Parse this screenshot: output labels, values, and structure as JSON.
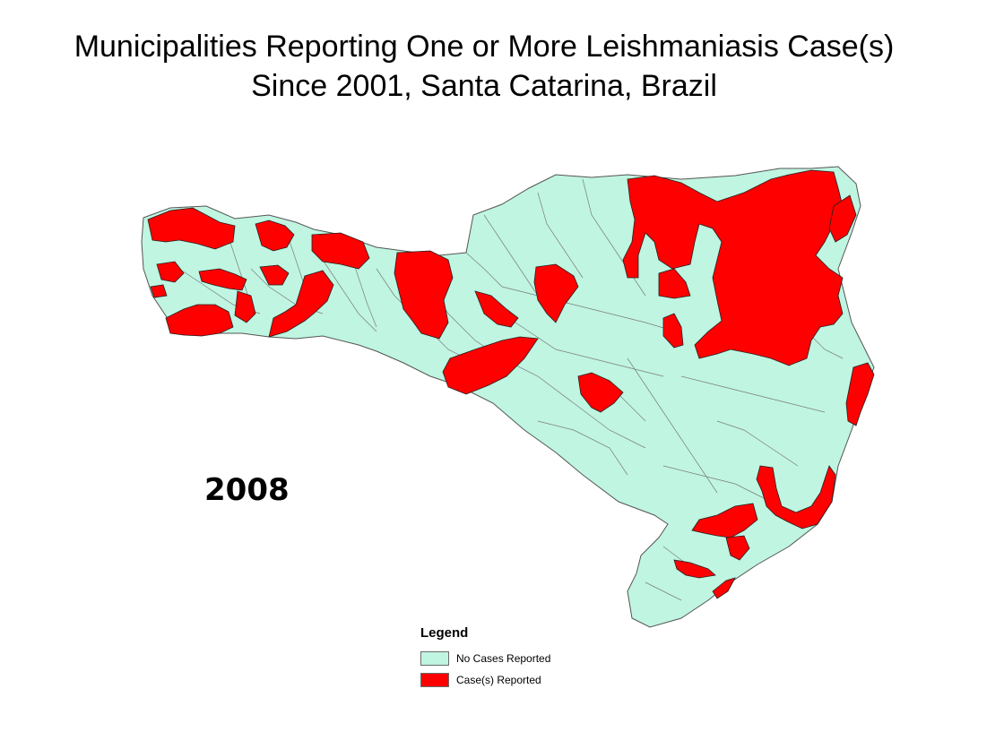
{
  "title": {
    "line1": "Municipalities Reporting One or More Leishmaniasis Case(s)",
    "line2": "Since 2001, Santa Catarina, Brazil"
  },
  "year_label": "2008",
  "legend": {
    "title": "Legend",
    "items": [
      {
        "label": "No Cases Reported",
        "color": "#bff5e1"
      },
      {
        "label": "Case(s) Reported",
        "color": "#ff0000"
      }
    ]
  },
  "colors": {
    "no_cases": "#bff5e1",
    "cases": "#ff0000",
    "border": "#6d6d6d"
  }
}
